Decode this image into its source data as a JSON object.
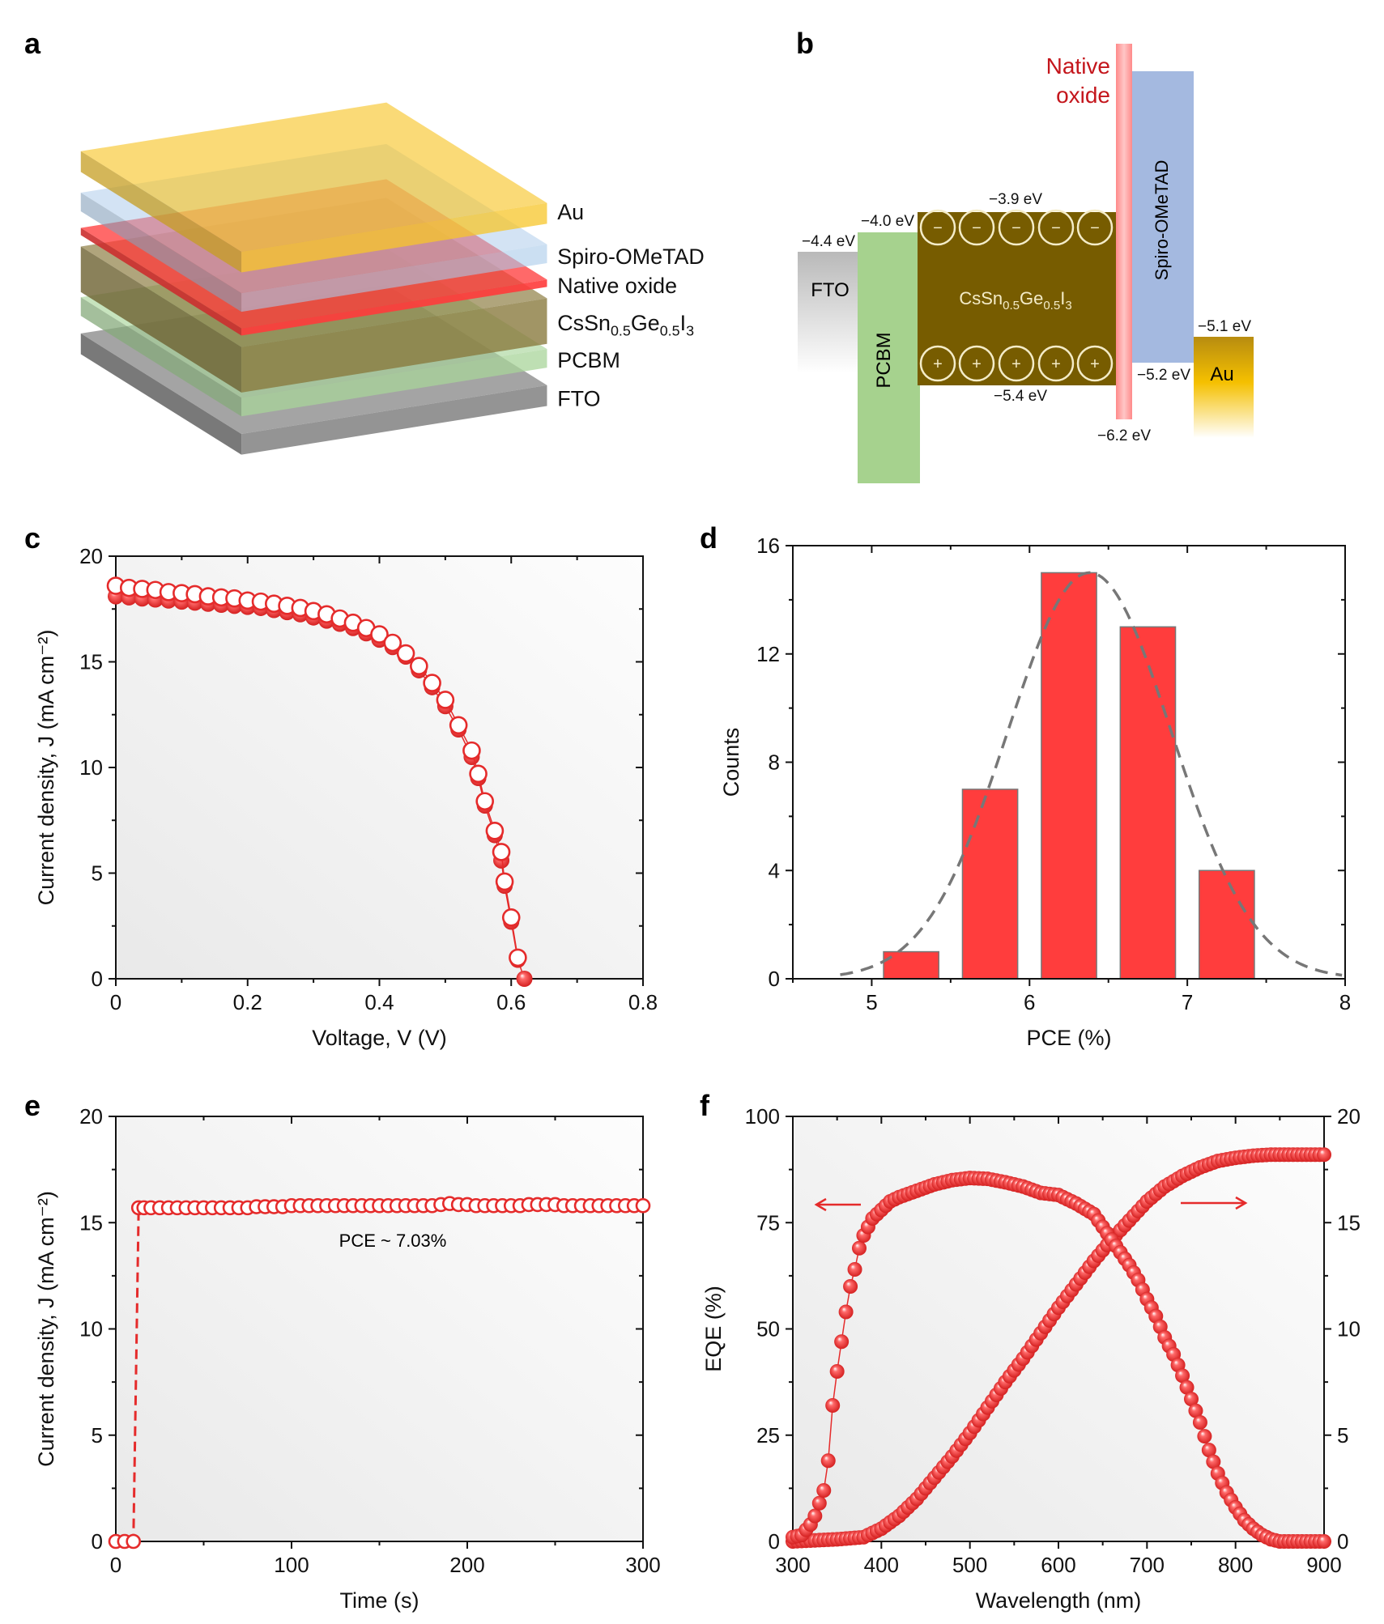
{
  "panel_labels": {
    "a": "a",
    "b": "b",
    "c": "c",
    "d": "d",
    "e": "e",
    "f": "f"
  },
  "diagram_a": {
    "layers": [
      {
        "name": "Au",
        "color": "#f7c52a"
      },
      {
        "name": "Spiro-OMeTAD",
        "color": "#a9c9ea"
      },
      {
        "name": "Native oxide",
        "color": "#ff3b3b"
      },
      {
        "name_parts": [
          "CsSn",
          "0.5",
          "Ge",
          "0.5",
          "I",
          "3"
        ],
        "color": "#8a7a3e"
      },
      {
        "name": "PCBM",
        "color": "#a8d49a"
      },
      {
        "name": "FTO",
        "color": "#8e8e8e"
      }
    ]
  },
  "diagram_b": {
    "fto": {
      "label": "FTO",
      "level": "−4.4 eV",
      "color": "#c8c8c8"
    },
    "pcbm": {
      "label": "PCBM",
      "level": "−4.0 eV",
      "color": "#a6d28e"
    },
    "perovskite": {
      "label_parts": [
        "CsSn",
        "0.5",
        "Ge",
        "0.5",
        "I",
        "3"
      ],
      "cb": "−3.9 eV",
      "vb": "−5.4 eV",
      "color": "#775c00",
      "electron": "−",
      "hole": "+"
    },
    "native_oxide": {
      "label_line1": "Native",
      "label_line2": "oxide",
      "level": "−6.2 eV",
      "color": "#ff9a9a",
      "text_color": "#c4161c"
    },
    "spiro": {
      "label": "Spiro-OMeTAD",
      "level": "−5.2 eV",
      "color": "#a4b9e0"
    },
    "au": {
      "label": "Au",
      "level": "−5.1 eV",
      "color": "#e6b100"
    }
  },
  "chart_data": [
    {
      "panel": "c",
      "type": "scatter",
      "xlabel": "Voltage, V (V)",
      "ylabel": "Current density, J (mA cm⁻²)",
      "xlim": [
        0,
        0.8
      ],
      "ylim": [
        0,
        20
      ],
      "xticks": [
        "0",
        "0.2",
        "0.4",
        "0.6",
        "0.8"
      ],
      "yticks": [
        "0",
        "5",
        "10",
        "15",
        "20"
      ],
      "series": [
        {
          "marker": "open",
          "x": [
            0,
            0.02,
            0.04,
            0.06,
            0.08,
            0.1,
            0.12,
            0.14,
            0.16,
            0.18,
            0.2,
            0.22,
            0.24,
            0.26,
            0.28,
            0.3,
            0.32,
            0.34,
            0.36,
            0.38,
            0.4,
            0.42,
            0.44,
            0.46,
            0.48,
            0.5,
            0.52,
            0.54,
            0.55,
            0.56,
            0.575,
            0.585,
            0.59,
            0.6,
            0.61
          ],
          "y": [
            18.6,
            18.5,
            18.45,
            18.4,
            18.3,
            18.25,
            18.2,
            18.1,
            18.05,
            18.0,
            17.9,
            17.85,
            17.75,
            17.65,
            17.55,
            17.4,
            17.25,
            17.05,
            16.85,
            16.6,
            16.3,
            15.9,
            15.4,
            14.8,
            14.0,
            13.2,
            12.0,
            10.8,
            9.7,
            8.4,
            7.0,
            6.0,
            4.6,
            2.9,
            1.0
          ]
        },
        {
          "marker": "filled",
          "x": [
            0,
            0.02,
            0.04,
            0.06,
            0.08,
            0.1,
            0.12,
            0.14,
            0.16,
            0.18,
            0.2,
            0.22,
            0.24,
            0.26,
            0.28,
            0.3,
            0.32,
            0.34,
            0.36,
            0.38,
            0.4,
            0.42,
            0.44,
            0.46,
            0.48,
            0.5,
            0.52,
            0.54,
            0.55,
            0.56,
            0.575,
            0.585,
            0.59,
            0.6,
            0.61,
            0.62
          ],
          "y": [
            18.1,
            18.05,
            18.0,
            17.95,
            17.9,
            17.85,
            17.8,
            17.75,
            17.7,
            17.65,
            17.6,
            17.55,
            17.45,
            17.35,
            17.25,
            17.1,
            16.95,
            16.8,
            16.6,
            16.35,
            16.05,
            15.7,
            15.25,
            14.6,
            13.8,
            12.9,
            11.8,
            10.5,
            9.5,
            8.2,
            6.8,
            5.6,
            4.4,
            2.7,
            0.9,
            0.0
          ]
        }
      ]
    },
    {
      "panel": "d",
      "type": "bar",
      "xlabel": "PCE (%)",
      "ylabel": "Counts",
      "xlim": [
        4.5,
        8
      ],
      "ylim": [
        0,
        16
      ],
      "xticks": [
        "5",
        "6",
        "7",
        "8"
      ],
      "yticks": [
        "0",
        "4",
        "8",
        "12",
        "16"
      ],
      "bin_centers": [
        5.25,
        5.75,
        6.25,
        6.75,
        7.25
      ],
      "bar_width": 0.35,
      "values": [
        1,
        7,
        15,
        13,
        4
      ],
      "fit": {
        "type": "gaussian",
        "mean": 6.38,
        "sigma": 0.52,
        "amplitude": 15
      },
      "bar_color": "#ff3d3d"
    },
    {
      "panel": "e",
      "type": "scatter",
      "xlabel": "Time (s)",
      "ylabel": "Current density, J (mA cm⁻²)",
      "xlim": [
        0,
        300
      ],
      "ylim": [
        0,
        20
      ],
      "xticks": [
        "0",
        "100",
        "200",
        "300"
      ],
      "yticks": [
        "0",
        "5",
        "10",
        "15",
        "20"
      ],
      "annotation": "PCE ~ 7.03%",
      "x": [
        0,
        5,
        10,
        13,
        16,
        20,
        25,
        30,
        35,
        40,
        45,
        50,
        55,
        60,
        65,
        70,
        75,
        80,
        85,
        90,
        95,
        100,
        105,
        110,
        115,
        120,
        125,
        130,
        135,
        140,
        145,
        150,
        155,
        160,
        165,
        170,
        175,
        180,
        185,
        190,
        195,
        200,
        205,
        210,
        215,
        220,
        225,
        230,
        235,
        240,
        245,
        250,
        255,
        260,
        265,
        270,
        275,
        280,
        285,
        290,
        295,
        300
      ],
      "y": [
        0,
        0,
        0,
        15.7,
        15.7,
        15.7,
        15.7,
        15.7,
        15.7,
        15.7,
        15.7,
        15.7,
        15.7,
        15.7,
        15.7,
        15.7,
        15.7,
        15.75,
        15.75,
        15.75,
        15.75,
        15.8,
        15.8,
        15.8,
        15.8,
        15.8,
        15.8,
        15.8,
        15.8,
        15.8,
        15.8,
        15.8,
        15.8,
        15.8,
        15.8,
        15.8,
        15.8,
        15.8,
        15.85,
        15.9,
        15.85,
        15.85,
        15.8,
        15.8,
        15.8,
        15.8,
        15.8,
        15.8,
        15.85,
        15.85,
        15.85,
        15.85,
        15.8,
        15.8,
        15.8,
        15.8,
        15.8,
        15.8,
        15.8,
        15.8,
        15.8,
        15.8
      ]
    },
    {
      "panel": "f",
      "type": "scatter",
      "xlabel": "Wavelength (nm)",
      "ylabel": "EQE (%)",
      "xlim": [
        300,
        900
      ],
      "ylim": [
        0,
        100
      ],
      "y2lim": [
        0,
        20
      ],
      "xticks": [
        "300",
        "400",
        "500",
        "600",
        "700",
        "800",
        "900"
      ],
      "yticks": [
        "0",
        "25",
        "50",
        "75",
        "100"
      ],
      "y2ticks": [
        "0",
        "5",
        "10",
        "15",
        "20"
      ],
      "eqe": {
        "axis": "left",
        "x": [
          300,
          310,
          320,
          325,
          330,
          335,
          340,
          345,
          350,
          355,
          360,
          365,
          370,
          375,
          380,
          390,
          400,
          410,
          420,
          440,
          460,
          480,
          500,
          520,
          540,
          560,
          580,
          600,
          620,
          640,
          650,
          660,
          670,
          680,
          690,
          700,
          710,
          720,
          730,
          740,
          750,
          760,
          770,
          780,
          790,
          800,
          810,
          820,
          830,
          840,
          850,
          860,
          870,
          880,
          890,
          900
        ],
        "y": [
          1,
          1.5,
          4,
          6,
          9,
          12,
          19,
          32,
          40,
          47,
          54,
          60,
          64,
          69,
          72,
          76,
          78,
          80,
          81,
          82.5,
          84,
          85,
          85.5,
          85.3,
          84.5,
          83.5,
          82,
          81.5,
          79.5,
          77,
          74,
          71,
          68,
          65,
          61.5,
          57,
          53,
          48,
          44,
          39,
          33.5,
          28,
          21.5,
          16,
          11.5,
          8,
          5,
          3,
          1.5,
          0.5,
          0,
          0,
          0,
          0,
          0,
          0
        ]
      },
      "integrated_jsc": {
        "axis": "right",
        "x": [
          300,
          350,
          380,
          400,
          420,
          440,
          460,
          480,
          500,
          520,
          540,
          560,
          580,
          600,
          620,
          640,
          660,
          680,
          700,
          720,
          740,
          760,
          780,
          800,
          820,
          840,
          860,
          880,
          900
        ],
        "y": [
          0,
          0.1,
          0.2,
          0.6,
          1.2,
          2.0,
          3.0,
          4.0,
          5.1,
          6.3,
          7.5,
          8.6,
          9.8,
          11.0,
          12.1,
          13.2,
          14.2,
          15.1,
          16.0,
          16.7,
          17.2,
          17.6,
          17.9,
          18.05,
          18.15,
          18.2,
          18.2,
          18.2,
          18.2
        ]
      }
    }
  ],
  "colors": {
    "marker": "#ee2b2b",
    "plot_bg_light": "#fbfbfb",
    "plot_bg_dark": "#ececec"
  }
}
